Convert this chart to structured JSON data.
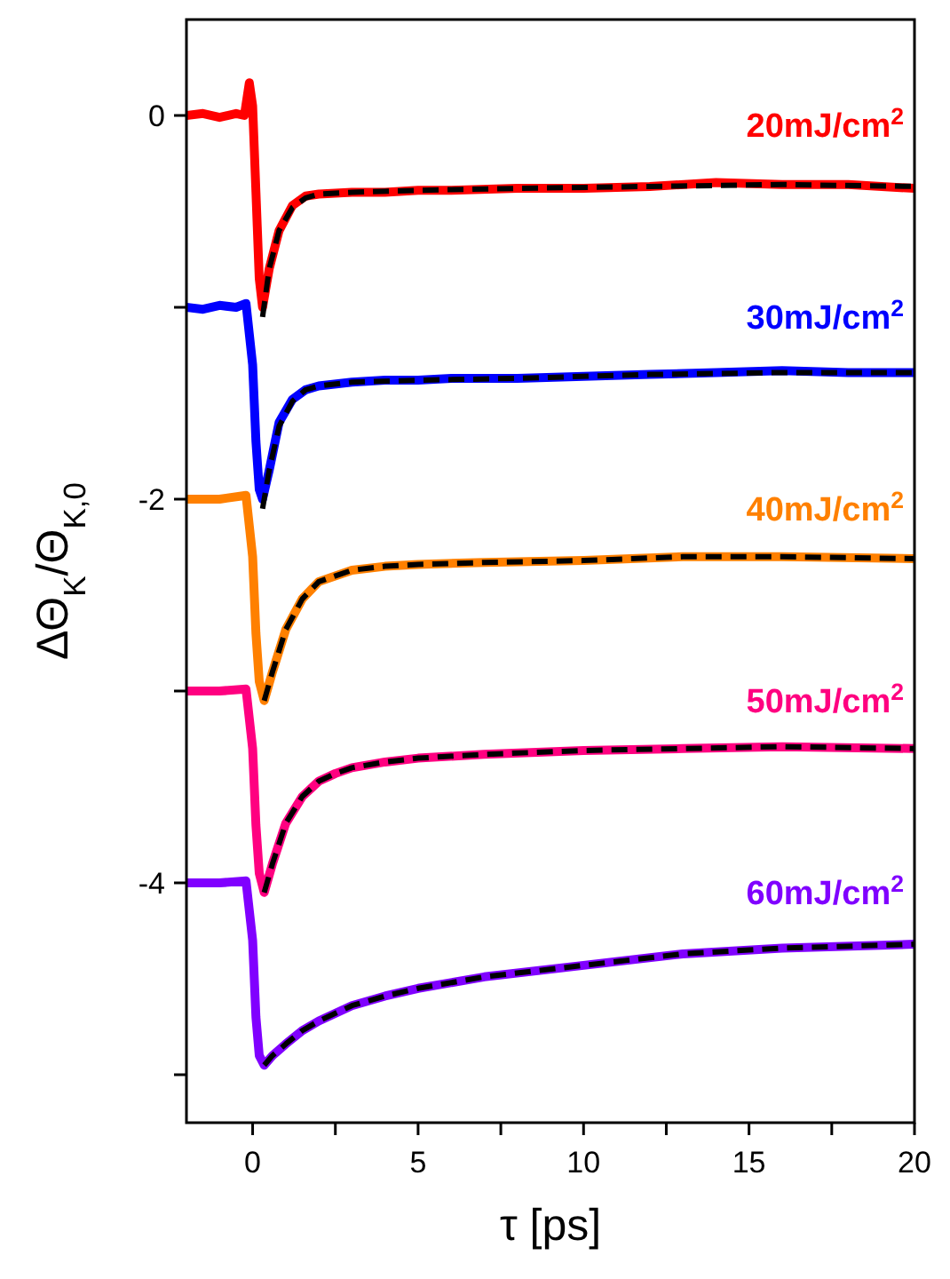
{
  "chart_data": {
    "type": "line",
    "xlabel": "τ [ps]",
    "ylabel": "ΔΘ$_{K}$/Θ$_{K,0}$",
    "xlim": [
      -2,
      20
    ],
    "ylim": [
      -5.25,
      0.5
    ],
    "xticks": [
      0,
      {
        "value": 2.5,
        "label": null
      },
      5,
      {
        "value": 7.5,
        "label": null
      },
      10,
      {
        "value": 12.5,
        "label": null
      },
      15,
      {
        "value": 17.5,
        "label": null
      },
      20
    ],
    "yticks": [
      0,
      {
        "value": -1,
        "label": null
      },
      -2,
      {
        "value": -3,
        "label": null
      },
      -4,
      {
        "value": -5,
        "label": null
      }
    ],
    "grid": false,
    "marker": "none",
    "series": [
      {
        "name": "20mJ/cm$^{2}$",
        "color": "#ff0000",
        "x": [
          -2,
          -1.5,
          -1,
          -0.5,
          -0.25,
          -0.1,
          0,
          0.1,
          0.2,
          0.3,
          0.5,
          0.8,
          1.2,
          1.6,
          2,
          3,
          4,
          5,
          6,
          8,
          10,
          12,
          14,
          16,
          18,
          20
        ],
        "values": [
          0,
          0.01,
          -0.01,
          0.01,
          0,
          0.17,
          0.05,
          -0.4,
          -0.85,
          -1.0,
          -0.8,
          -0.6,
          -0.47,
          -0.42,
          -0.41,
          -0.4,
          -0.4,
          -0.39,
          -0.39,
          -0.38,
          -0.38,
          -0.37,
          -0.35,
          -0.36,
          -0.36,
          -0.38
        ]
      },
      {
        "color": "#000000",
        "line_style": "dashed",
        "x": [
          0.3,
          0.5,
          0.8,
          1.2,
          1.6,
          2,
          3,
          5,
          8,
          12,
          16,
          20
        ],
        "values": [
          -1.05,
          -0.8,
          -0.6,
          -0.48,
          -0.43,
          -0.41,
          -0.4,
          -0.39,
          -0.38,
          -0.37,
          -0.36,
          -0.37
        ]
      },
      {
        "name": "30mJ/cm$^{2}$",
        "color": "#0000ff",
        "x": [
          -2,
          -1.5,
          -1,
          -0.5,
          -0.2,
          0,
          0.1,
          0.2,
          0.3,
          0.5,
          0.8,
          1.2,
          1.6,
          2,
          3,
          4,
          5,
          6,
          8,
          10,
          12,
          14,
          16,
          18,
          20
        ],
        "values": [
          -1,
          -1.01,
          -0.99,
          -1.0,
          -0.98,
          -1.3,
          -1.7,
          -1.95,
          -2.0,
          -1.85,
          -1.6,
          -1.48,
          -1.43,
          -1.41,
          -1.39,
          -1.38,
          -1.38,
          -1.37,
          -1.37,
          -1.36,
          -1.35,
          -1.34,
          -1.33,
          -1.34,
          -1.34
        ]
      },
      {
        "color": "#000000",
        "line_style": "dashed",
        "x": [
          0.3,
          0.5,
          0.8,
          1.2,
          1.6,
          2,
          3,
          5,
          8,
          12,
          16,
          20
        ],
        "values": [
          -2.05,
          -1.85,
          -1.62,
          -1.49,
          -1.43,
          -1.41,
          -1.39,
          -1.38,
          -1.37,
          -1.35,
          -1.34,
          -1.34
        ]
      },
      {
        "name": "40mJ/cm$^{2}$",
        "color": "#ff8000",
        "x": [
          -2,
          -1,
          -0.2,
          0,
          0.1,
          0.2,
          0.35,
          0.6,
          1,
          1.5,
          2,
          3,
          4,
          5,
          7,
          10,
          13,
          16,
          20
        ],
        "values": [
          -2,
          -2,
          -1.98,
          -2.3,
          -2.7,
          -2.95,
          -3.05,
          -2.9,
          -2.68,
          -2.52,
          -2.43,
          -2.37,
          -2.35,
          -2.34,
          -2.33,
          -2.32,
          -2.3,
          -2.3,
          -2.31
        ]
      },
      {
        "color": "#000000",
        "line_style": "dashed",
        "x": [
          0.35,
          0.6,
          1,
          1.5,
          2,
          3,
          4,
          5,
          7,
          10,
          13,
          16,
          20
        ],
        "values": [
          -3.05,
          -2.9,
          -2.68,
          -2.52,
          -2.43,
          -2.37,
          -2.35,
          -2.34,
          -2.33,
          -2.32,
          -2.3,
          -2.3,
          -2.31
        ]
      },
      {
        "name": "50mJ/cm$^{2}$",
        "color": "#ff0080",
        "x": [
          -2,
          -1,
          -0.2,
          0,
          0.1,
          0.2,
          0.35,
          0.6,
          1,
          1.5,
          2,
          2.5,
          3,
          4,
          5,
          7,
          10,
          13,
          16,
          20
        ],
        "values": [
          -3,
          -3,
          -2.99,
          -3.3,
          -3.7,
          -3.95,
          -4.05,
          -3.9,
          -3.69,
          -3.55,
          -3.47,
          -3.43,
          -3.4,
          -3.37,
          -3.35,
          -3.33,
          -3.31,
          -3.3,
          -3.29,
          -3.3
        ]
      },
      {
        "color": "#000000",
        "line_style": "dashed",
        "x": [
          0.35,
          0.6,
          1,
          1.5,
          2,
          2.5,
          3,
          4,
          5,
          7,
          10,
          13,
          16,
          20
        ],
        "values": [
          -4.05,
          -3.9,
          -3.69,
          -3.55,
          -3.47,
          -3.43,
          -3.4,
          -3.37,
          -3.35,
          -3.33,
          -3.31,
          -3.3,
          -3.29,
          -3.3
        ]
      },
      {
        "name": "60mJ/cm$^{2}$",
        "color": "#8000ff",
        "x": [
          -2,
          -1,
          -0.2,
          0,
          0.1,
          0.2,
          0.35,
          0.6,
          1,
          1.5,
          2,
          3,
          4,
          5,
          7,
          10,
          13,
          16,
          20
        ],
        "values": [
          -4,
          -4,
          -3.99,
          -4.3,
          -4.7,
          -4.9,
          -4.95,
          -4.9,
          -4.84,
          -4.77,
          -4.72,
          -4.64,
          -4.59,
          -4.55,
          -4.49,
          -4.43,
          -4.37,
          -4.34,
          -4.32
        ]
      },
      {
        "color": "#000000",
        "line_style": "dashed",
        "x": [
          0.35,
          0.6,
          1,
          1.5,
          2,
          3,
          4,
          5,
          7,
          10,
          13,
          16,
          20
        ],
        "values": [
          -4.95,
          -4.9,
          -4.84,
          -4.77,
          -4.72,
          -4.64,
          -4.59,
          -4.55,
          -4.49,
          -4.43,
          -4.37,
          -4.34,
          -4.32
        ]
      }
    ]
  }
}
